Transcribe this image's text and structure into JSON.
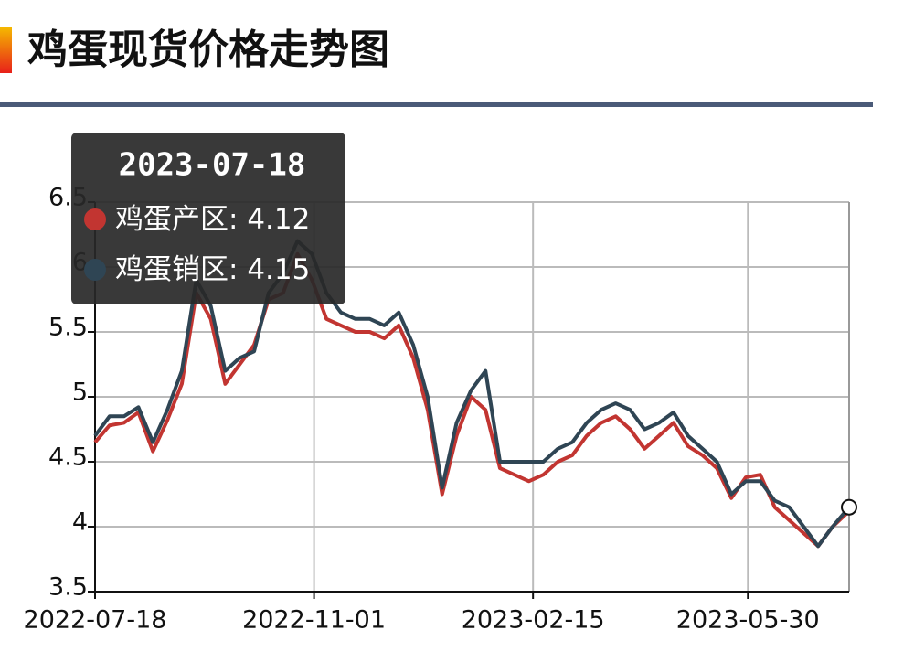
{
  "chart_data": {
    "type": "line",
    "title": "鸡蛋现货价格走势图",
    "x": [
      "2022-07-18",
      "2022-07-25",
      "2022-08-01",
      "2022-08-08",
      "2022-08-15",
      "2022-08-22",
      "2022-08-29",
      "2022-09-05",
      "2022-09-12",
      "2022-09-19",
      "2022-09-26",
      "2022-10-03",
      "2022-10-10",
      "2022-10-17",
      "2022-10-24",
      "2022-10-31",
      "2022-11-07",
      "2022-11-14",
      "2022-11-21",
      "2022-11-28",
      "2022-12-05",
      "2022-12-12",
      "2022-12-19",
      "2022-12-26",
      "2023-01-02",
      "2023-01-09",
      "2023-01-16",
      "2023-01-23",
      "2023-01-30",
      "2023-02-06",
      "2023-02-13",
      "2023-02-20",
      "2023-02-27",
      "2023-03-06",
      "2023-03-13",
      "2023-03-20",
      "2023-03-27",
      "2023-04-03",
      "2023-04-10",
      "2023-04-17",
      "2023-04-24",
      "2023-05-01",
      "2023-05-08",
      "2023-05-15",
      "2023-05-22",
      "2023-05-29",
      "2023-06-05",
      "2023-06-12",
      "2023-06-19",
      "2023-06-26",
      "2023-07-03",
      "2023-07-10",
      "2023-07-18"
    ],
    "series": [
      {
        "name": "鸡蛋产区",
        "color": "#c23531",
        "values": [
          4.65,
          4.78,
          4.8,
          4.88,
          4.58,
          4.82,
          5.1,
          5.8,
          5.6,
          5.1,
          5.25,
          5.4,
          5.75,
          5.8,
          6.1,
          5.9,
          5.6,
          5.55,
          5.5,
          5.5,
          5.45,
          5.55,
          5.3,
          4.9,
          4.25,
          4.7,
          5.0,
          4.9,
          4.45,
          4.4,
          4.35,
          4.4,
          4.5,
          4.55,
          4.7,
          4.8,
          4.85,
          4.75,
          4.6,
          4.7,
          4.8,
          4.62,
          4.55,
          4.45,
          4.22,
          4.38,
          4.4,
          4.15,
          4.05,
          3.95,
          3.85,
          4.0,
          4.12
        ]
      },
      {
        "name": "鸡蛋销区",
        "color": "#2f4554",
        "values": [
          4.7,
          4.85,
          4.85,
          4.92,
          4.65,
          4.9,
          5.2,
          5.9,
          5.7,
          5.2,
          5.3,
          5.35,
          5.8,
          5.95,
          6.2,
          6.1,
          5.8,
          5.65,
          5.6,
          5.6,
          5.55,
          5.65,
          5.4,
          5.0,
          4.3,
          4.8,
          5.05,
          5.2,
          4.5,
          4.5,
          4.5,
          4.5,
          4.6,
          4.65,
          4.8,
          4.9,
          4.95,
          4.9,
          4.75,
          4.8,
          4.88,
          4.7,
          4.6,
          4.5,
          4.25,
          4.35,
          4.35,
          4.2,
          4.15,
          4.0,
          3.85,
          4.0,
          4.15
        ]
      }
    ],
    "xlim": [
      "2022-07-18",
      "2023-07-18"
    ],
    "xticks": [
      "2022-07-18",
      "2022-11-01",
      "2023-02-15",
      "2023-05-30"
    ],
    "ylim": [
      3.5,
      6.5
    ],
    "yticks": [
      3.5,
      4,
      4.5,
      5,
      5.5,
      6,
      6.5
    ],
    "grid": true
  }
}
